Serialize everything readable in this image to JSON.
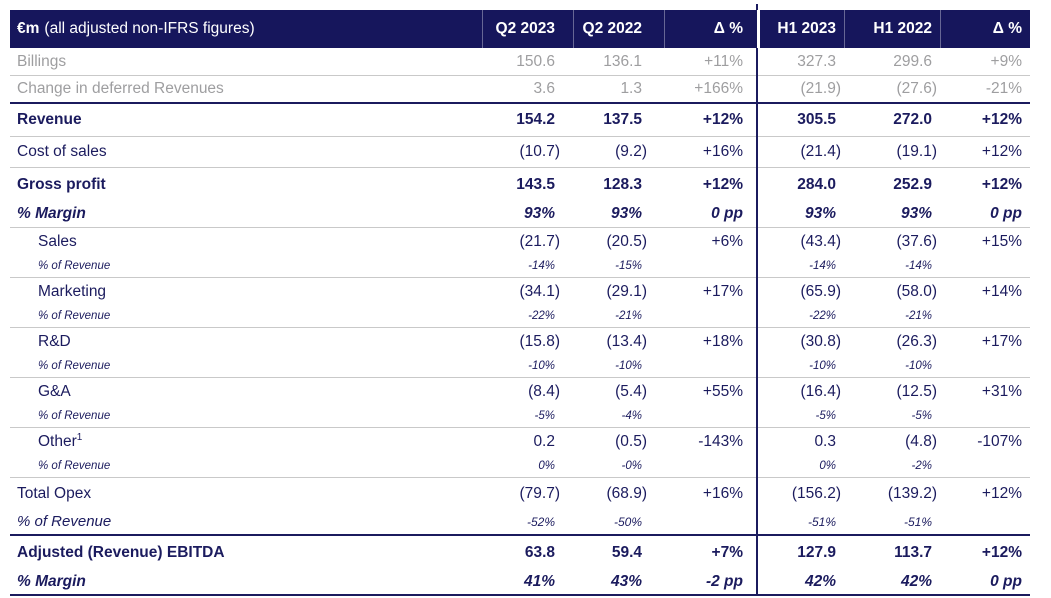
{
  "table": {
    "header": {
      "title_bold": "€m",
      "title_rest": "(all adjusted non-IFRS figures)",
      "columns": [
        "Q2 2023",
        "Q2 2022",
        "Δ %",
        "H1 2023",
        "H1 2022",
        "Δ %"
      ]
    },
    "rows": [
      {
        "label": "Billings",
        "style": "muted",
        "border": "gray",
        "values": [
          "150.6",
          "136.1",
          "+11%",
          "327.3",
          "299.6",
          "+9%"
        ]
      },
      {
        "label": "Change in deferred Revenues",
        "style": "muted",
        "border": "navy",
        "values": [
          "3.6",
          "1.3",
          "+166%",
          "(21.9)",
          "(27.6)",
          "-21%"
        ]
      },
      {
        "label": "Revenue",
        "style": "strong",
        "border": "gray",
        "values": [
          "154.2",
          "137.5",
          "+12%",
          "305.5",
          "272.0",
          "+12%"
        ]
      },
      {
        "label": "Cost of sales",
        "style": "plain",
        "border": "gray",
        "values": [
          "(10.7)",
          "(9.2)",
          "+16%",
          "(21.4)",
          "(19.1)",
          "+12%"
        ]
      },
      {
        "label": "Gross profit",
        "style": "strong",
        "border": "none",
        "values": [
          "143.5",
          "128.3",
          "+12%",
          "284.0",
          "252.9",
          "+12%"
        ]
      },
      {
        "label": "% Margin",
        "style": "margin",
        "border": "gray",
        "values": [
          "93%",
          "93%",
          "0 pp",
          "93%",
          "93%",
          "0 pp"
        ]
      },
      {
        "label": "Sales",
        "style": "sub",
        "border": "none",
        "values": [
          "(21.7)",
          "(20.5)",
          "+6%",
          "(43.4)",
          "(37.6)",
          "+15%"
        ]
      },
      {
        "label": "% of Revenue",
        "style": "subpct",
        "border": "gray",
        "values": [
          "-14%",
          "-15%",
          "",
          "-14%",
          "-14%",
          ""
        ]
      },
      {
        "label": "Marketing",
        "style": "sub",
        "border": "none",
        "values": [
          "(34.1)",
          "(29.1)",
          "+17%",
          "(65.9)",
          "(58.0)",
          "+14%"
        ]
      },
      {
        "label": "% of Revenue",
        "style": "subpct",
        "border": "gray",
        "values": [
          "-22%",
          "-21%",
          "",
          "-22%",
          "-21%",
          ""
        ]
      },
      {
        "label": "R&D",
        "style": "sub",
        "border": "none",
        "values": [
          "(15.8)",
          "(13.4)",
          "+18%",
          "(30.8)",
          "(26.3)",
          "+17%"
        ]
      },
      {
        "label": "% of Revenue",
        "style": "subpct",
        "border": "gray",
        "values": [
          "-10%",
          "-10%",
          "",
          "-10%",
          "-10%",
          ""
        ]
      },
      {
        "label": "G&A",
        "style": "sub",
        "border": "none",
        "values": [
          "(8.4)",
          "(5.4)",
          "+55%",
          "(16.4)",
          "(12.5)",
          "+31%"
        ]
      },
      {
        "label": "% of Revenue",
        "style": "subpct",
        "border": "gray",
        "values": [
          "-5%",
          "-4%",
          "",
          "-5%",
          "-5%",
          ""
        ]
      },
      {
        "label": "Other",
        "sup": "1",
        "style": "sub",
        "border": "none",
        "values": [
          "0.2",
          "(0.5)",
          "-143%",
          "0.3",
          "(4.8)",
          "-107%"
        ]
      },
      {
        "label": "% of Revenue",
        "style": "subpct",
        "border": "gray",
        "values": [
          "0%",
          "-0%",
          "",
          "0%",
          "-2%",
          ""
        ]
      },
      {
        "label": "Total Opex",
        "style": "plain",
        "border": "none",
        "values": [
          "(79.7)",
          "(68.9)",
          "+16%",
          "(156.2)",
          "(139.2)",
          "+12%"
        ]
      },
      {
        "label": "% of Revenue",
        "style": "totalpct",
        "border": "navy",
        "values": [
          "-52%",
          "-50%",
          "",
          "-51%",
          "-51%",
          ""
        ]
      },
      {
        "label": "Adjusted (Revenue) EBITDA",
        "style": "strong",
        "border": "none",
        "values": [
          "63.8",
          "59.4",
          "+7%",
          "127.9",
          "113.7",
          "+12%"
        ]
      },
      {
        "label": "% Margin",
        "style": "margin",
        "border": "navy",
        "values": [
          "41%",
          "43%",
          "-2 pp",
          "42%",
          "42%",
          "0 pp"
        ]
      }
    ]
  },
  "colors": {
    "header_background": "#16165c",
    "navy_text": "#1b1b5e",
    "muted_text": "#9e9ea0",
    "gray_rule": "#c9c9c9",
    "navy_rule": "#1b1b5e"
  }
}
